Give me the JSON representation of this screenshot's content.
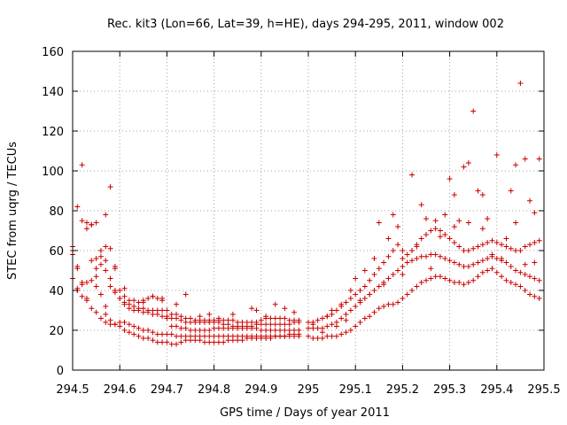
{
  "chart_data": {
    "type": "scatter",
    "title": "Rec. kit3 (Lon=66, Lat=39, h=HE), days 294-295, 2011, window 002",
    "xlabel": "GPS time / Days of year 2011",
    "ylabel": "STEC from uqrg / TECUs",
    "xlim": [
      294.5,
      295.5
    ],
    "ylim": [
      0,
      160
    ],
    "xticks": [
      294.5,
      294.6,
      294.7,
      294.8,
      294.9,
      295,
      295.1,
      295.2,
      295.3,
      295.4,
      295.5
    ],
    "xtick_labels": [
      "294.5",
      "294.6",
      "294.7",
      "294.8",
      "294.9",
      "295",
      "295.1",
      "295.2",
      "295.3",
      "295.4",
      "295.5"
    ],
    "yticks": [
      0,
      20,
      40,
      60,
      80,
      100,
      120,
      140,
      160
    ],
    "ytick_labels": [
      "0",
      "20",
      "40",
      "60",
      "80",
      "100",
      "120",
      "140",
      "160"
    ],
    "grid": true,
    "marker": "plus",
    "color": "#cc0000",
    "series": [
      {
        "x": [
          294.5,
          294.5,
          294.51,
          294.51,
          294.52,
          294.53,
          294.54,
          294.55,
          294.56,
          294.57,
          294.58,
          294.59,
          294.6,
          294.61,
          294.62,
          294.63,
          294.64,
          294.65,
          294.66,
          294.67,
          294.68,
          294.69,
          294.7,
          294.71,
          294.72,
          294.73,
          294.74,
          294.75,
          294.76,
          294.77,
          294.78,
          294.79,
          294.8,
          294.81,
          294.82,
          294.83,
          294.84,
          294.85,
          294.86,
          294.87,
          294.88,
          294.89,
          294.9,
          294.91,
          294.92,
          294.93,
          294.94,
          294.95,
          294.96,
          294.97,
          294.98
        ],
        "y": [
          60,
          46,
          40,
          41,
          43,
          44,
          45,
          42,
          38,
          28,
          25,
          23,
          22,
          20,
          19,
          18,
          17,
          16,
          16,
          15,
          14,
          14,
          14,
          13,
          13,
          14,
          15,
          15,
          15,
          15,
          14,
          14,
          14,
          14,
          14,
          15,
          15,
          15,
          15,
          16,
          16,
          16,
          16,
          16,
          16,
          17,
          17,
          17,
          17,
          17,
          17
        ]
      },
      {
        "x": [
          294.5,
          294.51,
          294.52,
          294.53,
          294.54,
          294.55,
          294.56,
          294.57,
          294.58,
          294.59,
          294.6,
          294.61,
          294.62,
          294.63,
          294.64,
          294.65,
          294.66,
          294.67,
          294.68,
          294.69,
          294.7,
          294.71,
          294.72,
          294.73,
          294.74,
          294.75,
          294.76,
          294.77,
          294.78,
          294.79,
          294.8,
          294.81,
          294.82,
          294.83,
          294.84,
          294.85,
          294.86,
          294.87,
          294.88,
          294.89,
          294.9,
          294.91,
          294.92,
          294.93,
          294.94,
          294.95,
          294.96,
          294.97,
          294.98
        ],
        "y": [
          62,
          52,
          44,
          36,
          31,
          29,
          26,
          24,
          23,
          23,
          24,
          24,
          23,
          22,
          21,
          20,
          20,
          19,
          18,
          18,
          18,
          18,
          17,
          17,
          17,
          17,
          17,
          17,
          17,
          17,
          17,
          17,
          17,
          17,
          17,
          17,
          17,
          17,
          17,
          17,
          17,
          17,
          17,
          17,
          17,
          17,
          18,
          18,
          18
        ]
      },
      {
        "x": [
          294.51,
          294.52,
          294.53,
          294.54,
          294.55,
          294.56,
          294.57,
          294.58,
          294.59,
          294.6,
          294.61,
          294.62,
          294.63,
          294.64,
          294.65,
          294.66,
          294.67,
          294.68,
          294.69,
          294.7,
          294.71,
          294.72,
          294.73,
          294.74,
          294.75,
          294.76,
          294.77,
          294.78,
          294.79,
          294.8,
          294.81,
          294.82,
          294.83,
          294.84,
          294.85,
          294.86,
          294.87,
          294.88,
          294.89,
          294.9,
          294.91,
          294.92,
          294.93,
          294.94,
          294.95,
          294.96,
          294.97,
          294.98
        ],
        "y": [
          82,
          75,
          71,
          73,
          74,
          60,
          55,
          46,
          40,
          36,
          33,
          31,
          30,
          30,
          29,
          29,
          28,
          28,
          27,
          26,
          22,
          22,
          21,
          21,
          20,
          20,
          20,
          20,
          20,
          21,
          21,
          21,
          21,
          21,
          21,
          21,
          21,
          21,
          21,
          20,
          20,
          20,
          20,
          20,
          20,
          20,
          20,
          20
        ]
      },
      {
        "x": [
          294.52,
          294.53,
          294.54,
          294.55,
          294.56,
          294.57,
          294.58,
          294.59,
          294.6,
          294.61,
          294.62,
          294.63,
          294.64,
          294.65,
          294.66,
          294.67,
          294.68,
          294.69,
          294.7,
          294.71,
          294.72,
          294.73,
          294.74,
          294.75,
          294.76,
          294.77,
          294.78,
          294.79,
          294.8,
          294.81,
          294.82,
          294.83,
          294.84,
          294.85,
          294.86,
          294.87,
          294.88,
          294.89,
          294.9,
          294.91,
          294.92,
          294.93,
          294.94,
          294.95,
          294.96,
          294.97,
          294.98
        ],
        "y": [
          103,
          74,
          73,
          56,
          53,
          50,
          42,
          39,
          36,
          34,
          33,
          32,
          31,
          31,
          30,
          30,
          30,
          30,
          27,
          26,
          26,
          25,
          24,
          24,
          24,
          24,
          24,
          24,
          24,
          24,
          23,
          23,
          22,
          22,
          22,
          22,
          22,
          23,
          23,
          23,
          23,
          23,
          23,
          23,
          23,
          24,
          24
        ]
      },
      {
        "x": [
          294.54,
          294.55,
          294.56,
          294.57,
          294.58,
          294.59,
          294.6,
          294.61,
          294.62,
          294.63,
          294.64,
          294.65,
          294.66,
          294.67,
          294.68,
          294.69,
          294.7,
          294.71,
          294.72,
          294.73,
          294.74,
          294.75,
          294.76,
          294.77,
          294.78,
          294.79,
          294.8,
          294.81,
          294.82,
          294.83,
          294.84,
          294.85,
          294.86,
          294.87,
          294.88,
          294.89,
          294.9,
          294.91,
          294.92,
          294.93,
          294.94,
          294.95,
          294.96,
          294.97,
          294.98
        ],
        "y": [
          55,
          51,
          57,
          62,
          61,
          52,
          40,
          37,
          35,
          35,
          34,
          35,
          36,
          37,
          36,
          35,
          30,
          28,
          28,
          27,
          26,
          26,
          25,
          25,
          25,
          25,
          25,
          25,
          25,
          25,
          25,
          24,
          24,
          24,
          24,
          24,
          25,
          26,
          26,
          26,
          26,
          26,
          25,
          25,
          25
        ]
      },
      {
        "x": [
          294.57,
          294.58,
          294.59,
          294.61,
          294.65,
          294.67,
          294.69,
          294.72,
          294.74,
          294.77,
          294.79,
          294.81,
          294.84,
          294.88,
          294.89,
          294.91,
          294.93,
          294.95,
          294.97
        ],
        "y": [
          78,
          92,
          51,
          41,
          34,
          37,
          36,
          33,
          38,
          27,
          28,
          26,
          28,
          31,
          30,
          27,
          33,
          31,
          29
        ]
      },
      {
        "x": [
          295,
          295.01,
          295.02,
          295.03,
          295.04,
          295.05,
          295.06,
          295.07,
          295.08,
          295.09,
          295.1,
          295.11,
          295.12,
          295.13,
          295.14,
          295.15,
          295.16,
          295.17,
          295.18,
          295.19,
          295.2,
          295.21,
          295.22,
          295.23,
          295.24,
          295.25,
          295.26,
          295.27,
          295.28,
          295.29,
          295.3,
          295.31,
          295.32,
          295.33,
          295.34,
          295.35,
          295.36,
          295.37,
          295.38,
          295.39,
          295.4,
          295.41,
          295.42,
          295.43,
          295.44,
          295.45,
          295.46,
          295.47,
          295.48,
          295.49
        ],
        "y": [
          17,
          16,
          16,
          16,
          17,
          17,
          17,
          18,
          19,
          20,
          22,
          24,
          26,
          27,
          29,
          31,
          32,
          33,
          33,
          34,
          36,
          38,
          40,
          42,
          44,
          45,
          46,
          47,
          47,
          46,
          45,
          44,
          44,
          43,
          44,
          45,
          47,
          49,
          50,
          51,
          49,
          47,
          45,
          44,
          43,
          42,
          40,
          38,
          37,
          36
        ]
      },
      {
        "x": [
          295,
          295.01,
          295.02,
          295.03,
          295.04,
          295.05,
          295.06,
          295.07,
          295.08,
          295.09,
          295.1,
          295.11,
          295.12,
          295.13,
          295.14,
          295.15,
          295.16,
          295.17,
          295.18,
          295.19,
          295.2,
          295.21,
          295.22,
          295.23,
          295.24,
          295.25,
          295.26,
          295.27,
          295.28,
          295.29,
          295.3,
          295.31,
          295.32,
          295.33,
          295.34,
          295.35,
          295.36,
          295.37,
          295.38,
          295.39,
          295.4,
          295.41,
          295.42,
          295.43,
          295.44,
          295.45,
          295.46,
          295.47,
          295.48,
          295.49
        ],
        "y": [
          21,
          21,
          21,
          21,
          22,
          23,
          24,
          26,
          28,
          30,
          32,
          34,
          36,
          38,
          40,
          42,
          44,
          46,
          48,
          50,
          52,
          54,
          55,
          56,
          57,
          57,
          58,
          58,
          57,
          56,
          55,
          54,
          53,
          52,
          52,
          53,
          54,
          55,
          56,
          57,
          56,
          55,
          54,
          52,
          50,
          49,
          48,
          47,
          46,
          45
        ]
      },
      {
        "x": [
          295,
          295.01,
          295.02,
          295.03,
          295.04,
          295.05,
          295.06,
          295.07,
          295.08,
          295.09,
          295.1,
          295.11,
          295.12,
          295.13,
          295.14,
          295.15,
          295.16,
          295.17,
          295.18,
          295.19,
          295.2,
          295.21,
          295.22,
          295.23,
          295.24,
          295.25,
          295.26,
          295.27,
          295.28,
          295.29,
          295.3,
          295.31,
          295.32,
          295.33,
          295.34,
          295.35,
          295.36,
          295.37,
          295.38,
          295.39,
          295.4,
          295.41,
          295.42,
          295.43,
          295.44,
          295.45,
          295.46,
          295.47,
          295.48,
          295.49
        ],
        "y": [
          24,
          24,
          25,
          26,
          27,
          28,
          30,
          32,
          34,
          36,
          38,
          40,
          42,
          45,
          48,
          51,
          54,
          57,
          60,
          63,
          60,
          58,
          60,
          63,
          66,
          68,
          70,
          71,
          70,
          68,
          66,
          64,
          62,
          60,
          60,
          61,
          62,
          63,
          64,
          65,
          64,
          63,
          62,
          61,
          60,
          60,
          62,
          63,
          64,
          65
        ]
      },
      {
        "x": [
          295.05,
          295.07,
          295.09,
          295.1,
          295.12,
          295.14,
          295.15,
          295.17,
          295.18,
          295.19,
          295.2,
          295.22,
          295.24,
          295.25,
          295.27,
          295.28,
          295.29,
          295.3,
          295.31,
          295.32,
          295.33,
          295.34,
          295.35,
          295.36,
          295.37,
          295.38,
          295.4,
          295.41,
          295.43,
          295.44,
          295.45,
          295.46,
          295.47,
          295.48,
          295.49
        ],
        "y": [
          30,
          33,
          40,
          46,
          50,
          56,
          74,
          66,
          78,
          72,
          56,
          98,
          83,
          76,
          75,
          67,
          78,
          96,
          88,
          75,
          102,
          104,
          130,
          90,
          88,
          76,
          108,
          56,
          90,
          103,
          144,
          106,
          85,
          79,
          106
        ]
      },
      {
        "x": [
          294.5,
          294.51,
          294.51,
          294.52,
          294.53,
          294.55,
          294.57,
          295.01,
          295.03,
          295.04,
          295.06,
          295.08,
          295.11,
          295.13,
          295.16,
          295.2,
          295.23,
          295.26,
          295.31,
          295.34,
          295.37,
          295.39,
          295.42,
          295.44,
          295.46,
          295.48
        ],
        "y": [
          58,
          40,
          51,
          37,
          35,
          47,
          32,
          23,
          19,
          27,
          22,
          25,
          35,
          38,
          43,
          48,
          62,
          51,
          72,
          74,
          71,
          58,
          66,
          74,
          53,
          54
        ]
      }
    ]
  }
}
